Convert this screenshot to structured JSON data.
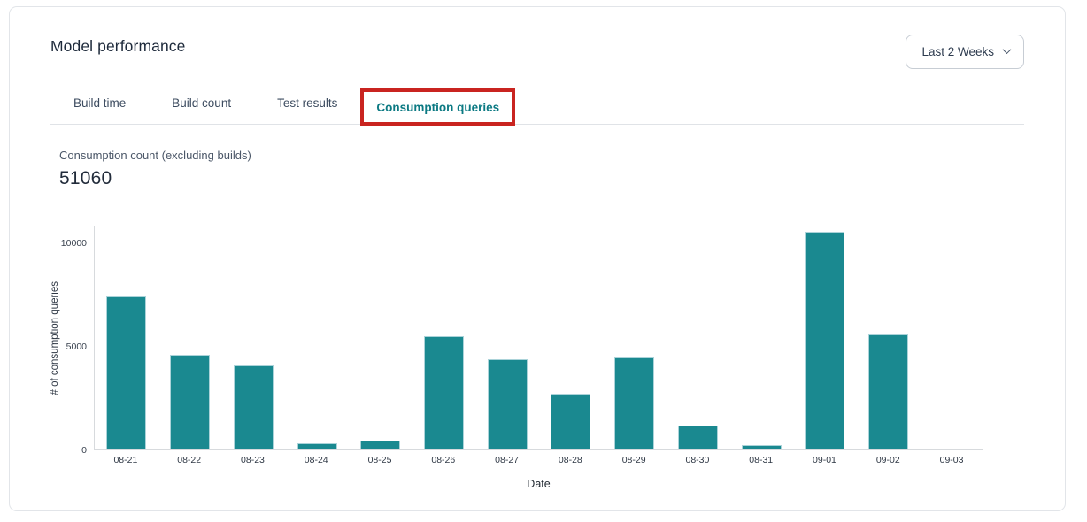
{
  "page": {
    "title": "Model performance"
  },
  "time_range": {
    "value": "Last 2 Weeks",
    "chevron_icon": "chevron-down"
  },
  "tabs": [
    {
      "label": "Build time",
      "active": false
    },
    {
      "label": "Build count",
      "active": false
    },
    {
      "label": "Test results",
      "active": false
    },
    {
      "label": "Consumption queries",
      "active": true,
      "highlighted_with_red_annotation_box": true
    }
  ],
  "metric": {
    "label": "Consumption count (excluding builds)",
    "value": "51060"
  },
  "chart_data": {
    "type": "bar",
    "title": "",
    "xlabel": "Date",
    "ylabel": "# of consumption queries",
    "categories": [
      "08-21",
      "08-22",
      "08-23",
      "08-24",
      "08-25",
      "08-26",
      "08-27",
      "08-28",
      "08-29",
      "08-30",
      "08-31",
      "09-01",
      "09-02",
      "09-03"
    ],
    "values": [
      7380,
      4580,
      4040,
      320,
      440,
      5470,
      4340,
      2690,
      4440,
      1140,
      200,
      10480,
      5540,
      0
    ],
    "yticks": [
      0,
      5000,
      10000
    ],
    "ylim": [
      0,
      10800
    ],
    "grid": false,
    "legend": "none",
    "bar_color": "#1a8990",
    "bar_edge_color": "#abd3d9"
  },
  "colors": {
    "accent_teal": "#0c7a83",
    "annotation_red": "#c92420",
    "card_border": "#e2e5e9",
    "axis_line": "#d7dadd"
  }
}
